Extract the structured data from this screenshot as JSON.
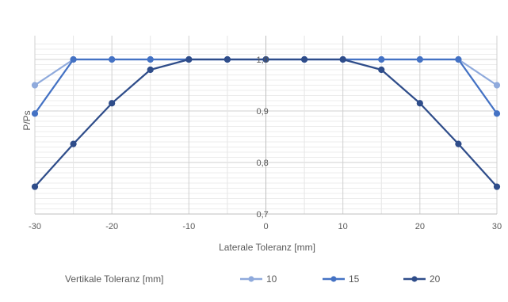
{
  "chart_data": {
    "type": "line",
    "xlabel": "Laterale Toleranz [mm]",
    "ylabel": "P/Ps",
    "xlim": [
      -30,
      30
    ],
    "ylim": [
      0.7,
      1.0
    ],
    "x_ticks": [
      "-30",
      "-20",
      "-10",
      "0",
      "10",
      "20",
      "30"
    ],
    "y_ticks": [
      "0,7",
      "0,8",
      "0,9",
      "1,0"
    ],
    "grid": true,
    "legend_position": "bottom",
    "legend_title": "Vertikale Toleranz [mm]",
    "x": [
      -30,
      -25,
      -20,
      -15,
      -10,
      -5,
      0,
      5,
      10,
      15,
      20,
      25,
      30
    ],
    "series": [
      {
        "name": "10",
        "color": "#8faadc",
        "values": [
          0.95,
          1.0,
          1.0,
          1.0,
          1.0,
          1.0,
          1.0,
          1.0,
          1.0,
          1.0,
          1.0,
          1.0,
          0.95
        ]
      },
      {
        "name": "15",
        "color": "#4472c4",
        "values": [
          0.895,
          1.0,
          1.0,
          1.0,
          1.0,
          1.0,
          1.0,
          1.0,
          1.0,
          1.0,
          1.0,
          1.0,
          0.895
        ]
      },
      {
        "name": "20",
        "color": "#2f4d8a",
        "values": [
          0.753,
          0.836,
          0.915,
          0.98,
          1.0,
          1.0,
          1.0,
          1.0,
          1.0,
          0.98,
          0.915,
          0.836,
          0.753
        ]
      }
    ]
  }
}
